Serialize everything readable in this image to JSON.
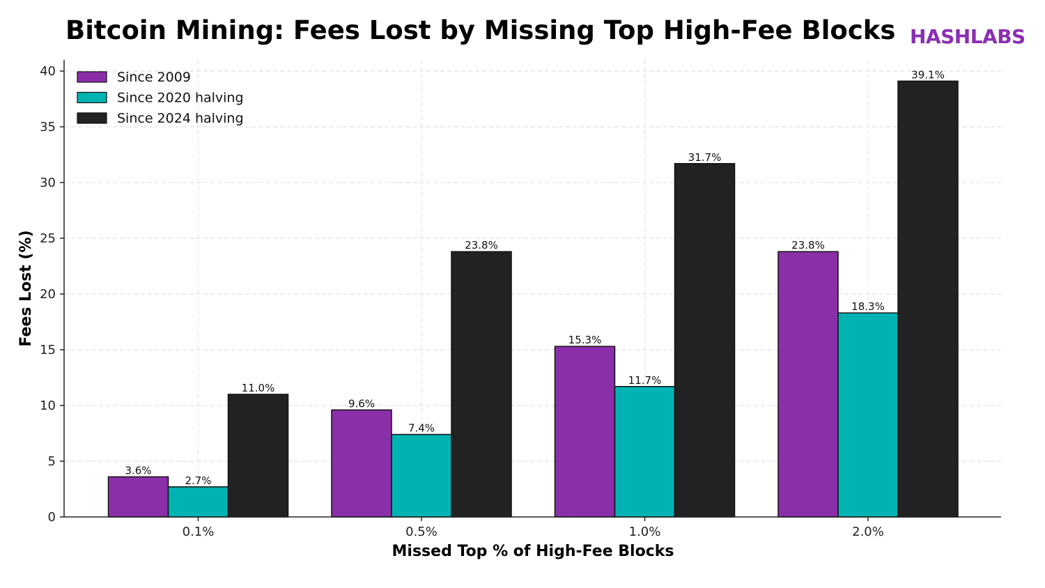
{
  "header": {
    "title": "Bitcoin Mining: Fees Lost by Missing Top High-Fee Blocks",
    "brand": "HASHLABS"
  },
  "chart_data": {
    "type": "bar",
    "title": "Bitcoin Mining: Fees Lost by Missing Top High-Fee Blocks",
    "xlabel": "Missed Top % of High-Fee Blocks",
    "ylabel": "Fees Lost (%)",
    "categories": [
      "0.1%",
      "0.5%",
      "1.0%",
      "2.0%"
    ],
    "ylim": [
      0,
      41
    ],
    "yticks": [
      0,
      5,
      10,
      15,
      20,
      25,
      30,
      35,
      40
    ],
    "grid": true,
    "legend_position": "top-left",
    "series": [
      {
        "name": "Since 2009",
        "color": "#8a2fa8",
        "values": [
          3.6,
          9.6,
          15.3,
          23.8
        ],
        "labels": [
          "3.6%",
          "9.6%",
          "15.3%",
          "23.8%"
        ]
      },
      {
        "name": "Since 2020 halving",
        "color": "#00b3b3",
        "values": [
          2.7,
          7.4,
          11.7,
          18.3
        ],
        "labels": [
          "2.7%",
          "7.4%",
          "11.7%",
          "18.3%"
        ]
      },
      {
        "name": "Since 2024 halving",
        "color": "#222222",
        "values": [
          11.0,
          23.8,
          31.7,
          39.1
        ],
        "labels": [
          "11.0%",
          "23.8%",
          "31.7%",
          "39.1%"
        ]
      }
    ]
  }
}
